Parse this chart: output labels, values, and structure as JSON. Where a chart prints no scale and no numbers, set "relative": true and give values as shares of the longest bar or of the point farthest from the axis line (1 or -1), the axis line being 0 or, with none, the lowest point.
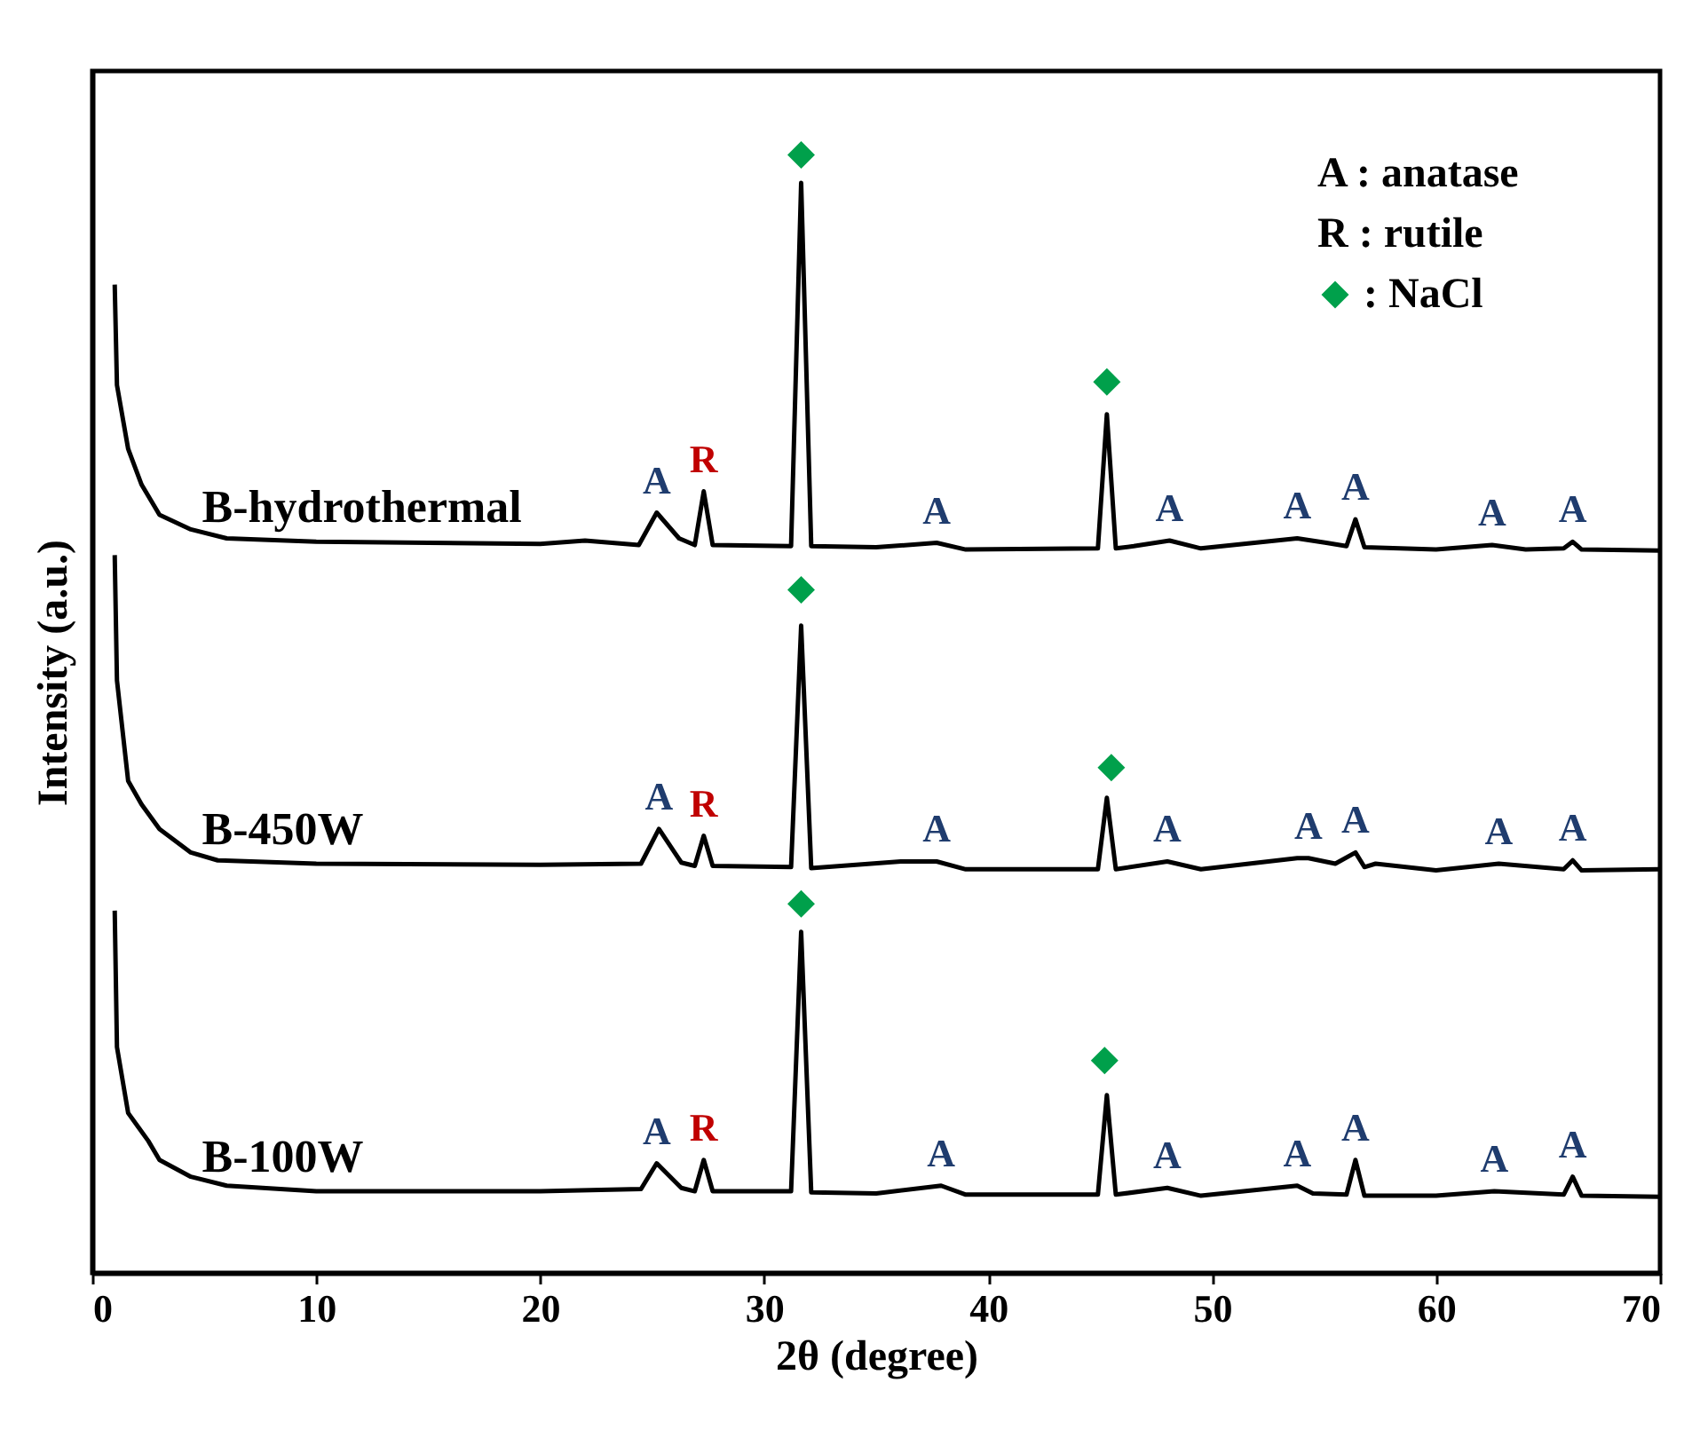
{
  "chart_data": {
    "type": "line",
    "xlabel": "2θ (degree)",
    "ylabel": "Intensity (a.u.)",
    "relative": true,
    "xlim": [
      0,
      70
    ],
    "xticks": [
      0,
      10,
      20,
      30,
      40,
      50,
      60,
      70
    ],
    "tick_labels": "x",
    "grid": false,
    "legend": "top right",
    "line_style": "solid",
    "series": [
      {
        "name": "B-hydrothermal",
        "color": "#000000",
        "x": [
          1.0,
          1.1,
          1.6,
          2.2,
          3.0,
          4.4,
          6.0,
          10,
          15,
          20,
          22,
          24.4,
          25.2,
          26.2,
          26.9,
          27.3,
          27.7,
          31.2,
          31.65,
          32.1,
          35,
          37.7,
          39,
          44.9,
          45.3,
          45.7,
          46.5,
          48.1,
          49.5,
          53.8,
          55.1,
          56.0,
          56.4,
          56.8,
          60,
          62.5,
          64,
          65.7,
          66.1,
          66.5,
          70
        ],
        "values": [
          0.884,
          0.794,
          0.737,
          0.705,
          0.678,
          0.665,
          0.657,
          0.654,
          0.653,
          0.652,
          0.655,
          0.651,
          0.68,
          0.657,
          0.651,
          0.699,
          0.651,
          0.65,
          0.975,
          0.65,
          0.649,
          0.653,
          0.647,
          0.648,
          0.768,
          0.648,
          0.65,
          0.655,
          0.648,
          0.657,
          0.653,
          0.65,
          0.674,
          0.649,
          0.647,
          0.651,
          0.647,
          0.648,
          0.654,
          0.647,
          0.646
        ]
      },
      {
        "name": "B-450W",
        "color": "#000000",
        "x": [
          1.0,
          1.1,
          1.6,
          2.2,
          3.0,
          4.4,
          5.6,
          10,
          20,
          24.5,
          25.3,
          26.3,
          26.9,
          27.3,
          27.7,
          31.2,
          31.65,
          32.1,
          36.1,
          37.7,
          39,
          44.9,
          45.3,
          45.7,
          48,
          49.5,
          53.8,
          54.3,
          55.5,
          56.4,
          56.8,
          57.3,
          60,
          62.8,
          65.7,
          66.1,
          66.5,
          70
        ],
        "values": [
          0.642,
          0.53,
          0.44,
          0.419,
          0.397,
          0.376,
          0.369,
          0.366,
          0.365,
          0.366,
          0.397,
          0.367,
          0.364,
          0.391,
          0.364,
          0.363,
          0.579,
          0.362,
          0.368,
          0.368,
          0.361,
          0.361,
          0.425,
          0.361,
          0.368,
          0.361,
          0.371,
          0.371,
          0.366,
          0.376,
          0.363,
          0.366,
          0.36,
          0.366,
          0.361,
          0.369,
          0.36,
          0.361
        ]
      },
      {
        "name": "B-100W",
        "color": "#000000",
        "x": [
          1.0,
          1.1,
          1.6,
          2.5,
          3.0,
          4.4,
          6.0,
          10,
          20,
          24.5,
          25.2,
          26.3,
          26.9,
          27.3,
          27.7,
          31.2,
          31.65,
          32.1,
          35,
          37.9,
          39,
          44.9,
          45.3,
          45.7,
          48,
          49.5,
          53.8,
          54.5,
          56.0,
          56.4,
          56.8,
          60,
          62.6,
          65.7,
          66.1,
          66.5,
          70
        ],
        "values": [
          0.324,
          0.202,
          0.143,
          0.118,
          0.101,
          0.086,
          0.078,
          0.073,
          0.073,
          0.075,
          0.098,
          0.076,
          0.073,
          0.101,
          0.073,
          0.073,
          0.305,
          0.072,
          0.071,
          0.078,
          0.07,
          0.07,
          0.159,
          0.07,
          0.076,
          0.069,
          0.078,
          0.071,
          0.07,
          0.101,
          0.069,
          0.069,
          0.073,
          0.07,
          0.086,
          0.069,
          0.068
        ]
      },
      {
        "name": ": NaCl",
        "type": "scatter",
        "marker": "diamond",
        "color": "#00a04b",
        "x": [
          31.65,
          45.3,
          31.65,
          45.5,
          31.65,
          45.2
        ],
        "values": [
          1.0,
          0.797,
          0.611,
          0.452,
          0.33,
          0.19
        ]
      }
    ],
    "annotations": [
      "A : anatase",
      "R : rutile",
      {
        "text": "A",
        "x": 25.2,
        "y": 0.68
      },
      {
        "text": "R",
        "x": 27.3,
        "y": 0.699
      },
      {
        "text": "A",
        "x": 37.7,
        "y": 0.653
      },
      {
        "text": "A",
        "x": 48.1,
        "y": 0.655
      },
      {
        "text": "A",
        "x": 53.8,
        "y": 0.657
      },
      {
        "text": "A",
        "x": 56.4,
        "y": 0.674
      },
      {
        "text": "A",
        "x": 62.5,
        "y": 0.651
      },
      {
        "text": "A",
        "x": 66.1,
        "y": 0.654
      },
      {
        "text": "A",
        "x": 25.3,
        "y": 0.397
      },
      {
        "text": "R",
        "x": 27.3,
        "y": 0.391
      },
      {
        "text": "A",
        "x": 37.7,
        "y": 0.368
      },
      {
        "text": "A",
        "x": 48,
        "y": 0.368
      },
      {
        "text": "A",
        "x": 54.3,
        "y": 0.371
      },
      {
        "text": "A",
        "x": 56.4,
        "y": 0.376
      },
      {
        "text": "A",
        "x": 62.8,
        "y": 0.366
      },
      {
        "text": "A",
        "x": 66.1,
        "y": 0.369
      },
      {
        "text": "A",
        "x": 25.2,
        "y": 0.098
      },
      {
        "text": "R",
        "x": 27.3,
        "y": 0.101
      },
      {
        "text": "A",
        "x": 37.9,
        "y": 0.078
      },
      {
        "text": "A",
        "x": 48,
        "y": 0.076
      },
      {
        "text": "A",
        "x": 53.8,
        "y": 0.078
      },
      {
        "text": "A",
        "x": 56.4,
        "y": 0.101
      },
      {
        "text": "A",
        "x": 62.6,
        "y": 0.073
      },
      {
        "text": "A",
        "x": 66.1,
        "y": 0.086
      }
    ]
  }
}
